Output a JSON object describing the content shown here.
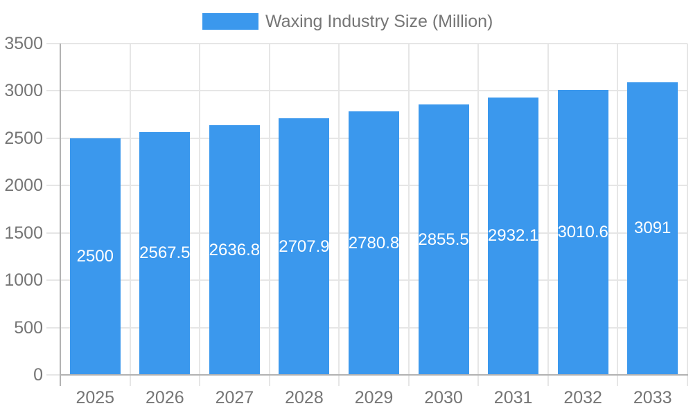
{
  "chart_data": {
    "type": "bar",
    "title": "Waxing Industry Size (Million)",
    "categories": [
      "2025",
      "2026",
      "2027",
      "2028",
      "2029",
      "2030",
      "2031",
      "2032",
      "2033"
    ],
    "series": [
      {
        "name": "Waxing Industry Size (Million)",
        "values": [
          2500,
          2567.5,
          2636.8,
          2707.9,
          2780.8,
          2855.5,
          2932.1,
          3010.6,
          3091
        ],
        "labels": [
          "2500",
          "2567.5",
          "2636.8",
          "2707.9",
          "2780.8",
          "2855.5",
          "2932.1",
          "3010.6",
          "3091"
        ]
      }
    ],
    "xlabel": "",
    "ylabel": "",
    "ylim": [
      0,
      3500
    ],
    "ytick_step": 500,
    "ytick_labels": [
      "0",
      "500",
      "1000",
      "1500",
      "2000",
      "2500",
      "3000",
      "3500"
    ],
    "grid": true,
    "legend_position": "top",
    "colors": {
      "bar": "#3b98ed",
      "axis_text": "#757575",
      "grid": "#e6e6e6",
      "axis_line": "#b2b2b2",
      "bar_label": "#ffffff",
      "background": "#ffffff"
    }
  },
  "legend": {
    "swatch_icon": "bar-color-swatch",
    "label": "Waxing Industry Size (Million)"
  }
}
